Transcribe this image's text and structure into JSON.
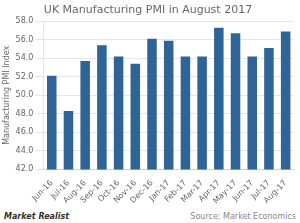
{
  "chart_data": {
    "type": "bar",
    "title": "UK Manufacturing PMI in August 2017",
    "categories": [
      "Jun-16",
      "Jul-16",
      "Aug-16",
      "Sep-16",
      "Oct-16",
      "Nov-16",
      "Dec-16",
      "Jan-17",
      "Feb-17",
      "Mar-17",
      "Apr-17",
      "May-17",
      "Jun-17",
      "Jul-17",
      "Aug-17"
    ],
    "values": [
      52.1,
      48.3,
      53.7,
      55.4,
      54.2,
      53.4,
      56.1,
      55.9,
      54.2,
      54.2,
      57.3,
      56.7,
      54.2,
      55.1,
      56.9
    ],
    "color": "#2e6496",
    "ylabel": "Manufacturing PMI Index",
    "ylim": [
      42.0,
      58.0
    ],
    "yticks": [
      {
        "value": 42,
        "label": "42.0"
      },
      {
        "value": 44,
        "label": "44.0"
      },
      {
        "value": 46,
        "label": "46.0"
      },
      {
        "value": 48,
        "label": "48.0"
      },
      {
        "value": 50,
        "label": "50.0"
      },
      {
        "value": 52,
        "label": "52.0"
      },
      {
        "value": 54,
        "label": "54.0"
      },
      {
        "value": 56,
        "label": "56.0"
      },
      {
        "value": 58,
        "label": "58.0"
      }
    ],
    "grid": true,
    "annotations": [
      "Market Realist",
      "Source: Market Economics"
    ]
  }
}
